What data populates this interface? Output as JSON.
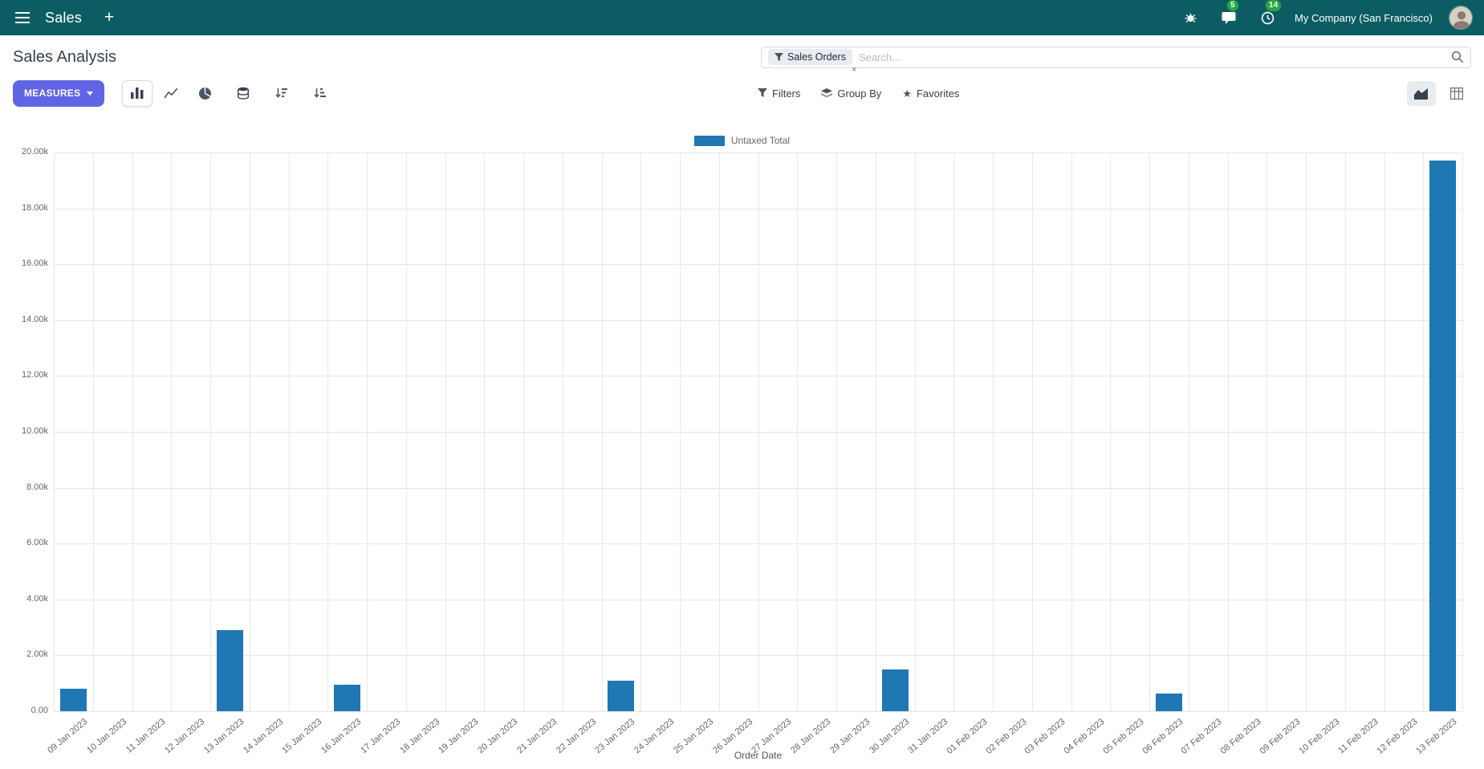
{
  "navbar": {
    "app_name": "Sales",
    "new_tab_label": "+",
    "messages_badge": "5",
    "activities_badge": "14",
    "company": "My Company (San Francisco)"
  },
  "control_panel": {
    "title": "Sales Analysis",
    "search": {
      "facet_label": "Sales Orders",
      "facet_remove": "×",
      "placeholder": "Search..."
    },
    "measures_label": "MEASURES",
    "filters_label": "Filters",
    "groupby_label": "Group By",
    "favorites_label": "Favorites",
    "favorites_icon": "★"
  },
  "chart_data": {
    "type": "bar",
    "title": "",
    "legend_label": "Untaxed Total",
    "legend_position": "top",
    "grid": true,
    "xlabel": "Order Date",
    "ylabel": "",
    "ylim": [
      0,
      20000
    ],
    "ytick_step": 2000,
    "ytick_labels": [
      "0.00",
      "2.00k",
      "4.00k",
      "6.00k",
      "8.00k",
      "10.00k",
      "12.00k",
      "14.00k",
      "16.00k",
      "18.00k",
      "20.00k"
    ],
    "color": "#1f77b4",
    "categories": [
      "09 Jan 2023",
      "10 Jan 2023",
      "11 Jan 2023",
      "12 Jan 2023",
      "13 Jan 2023",
      "14 Jan 2023",
      "15 Jan 2023",
      "16 Jan 2023",
      "17 Jan 2023",
      "18 Jan 2023",
      "19 Jan 2023",
      "20 Jan 2023",
      "21 Jan 2023",
      "22 Jan 2023",
      "23 Jan 2023",
      "24 Jan 2023",
      "25 Jan 2023",
      "26 Jan 2023",
      "27 Jan 2023",
      "28 Jan 2023",
      "29 Jan 2023",
      "30 Jan 2023",
      "31 Jan 2023",
      "01 Feb 2023",
      "02 Feb 2023",
      "03 Feb 2023",
      "04 Feb 2023",
      "05 Feb 2023",
      "06 Feb 2023",
      "07 Feb 2023",
      "08 Feb 2023",
      "09 Feb 2023",
      "10 Feb 2023",
      "11 Feb 2023",
      "12 Feb 2023",
      "13 Feb 2023"
    ],
    "values": [
      800,
      0,
      0,
      0,
      2900,
      0,
      0,
      950,
      0,
      0,
      0,
      0,
      0,
      0,
      1080,
      0,
      0,
      0,
      0,
      0,
      0,
      1500,
      0,
      0,
      0,
      0,
      0,
      0,
      620,
      0,
      0,
      0,
      0,
      0,
      0,
      19700
    ]
  },
  "colors": {
    "navbar_bg": "#0c5d63",
    "primary_button": "#6065e6",
    "bar": "#1f77b4",
    "badge": "#28a745"
  }
}
